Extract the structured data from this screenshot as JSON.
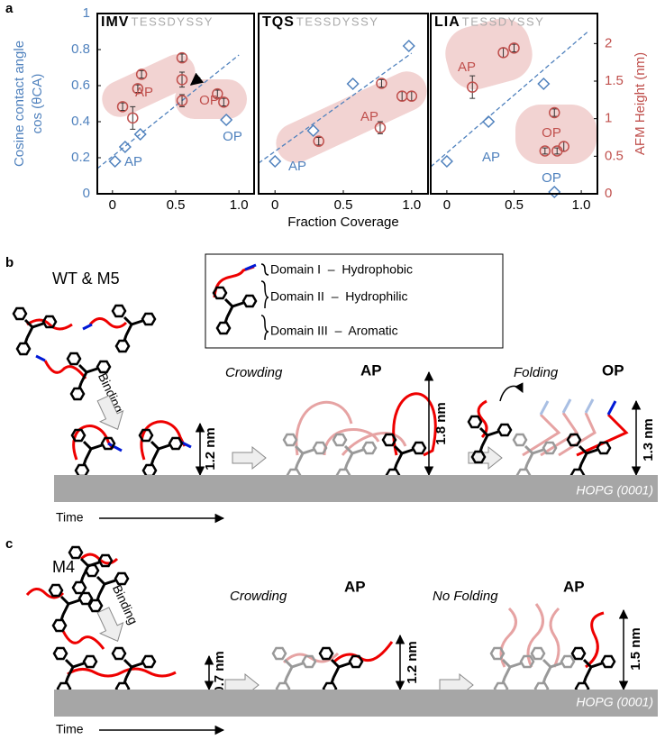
{
  "panel_labels": [
    "a",
    "b",
    "c"
  ],
  "chart_data": [
    {
      "type": "scatter",
      "title": "IMV",
      "subtitle": "TESSDYSSY",
      "y_label": [
        "Cosine contact angle",
        "cos (θCA)"
      ],
      "xlim": [
        -0.12,
        1.12
      ],
      "xticks": [
        0,
        0.5,
        {
          "value": 1,
          "label": "1.0"
        }
      ],
      "ylim": [
        0,
        1
      ],
      "yticks": [
        0,
        0.2,
        0.4,
        0.6,
        0.8,
        1
      ],
      "y2lim": [
        0,
        2.4
      ],
      "series": [
        {
          "color": "#4f81bd",
          "marker": "diamond",
          "x": [
            0.02,
            0.1,
            0.22,
            0.9
          ],
          "values": [
            0.18,
            0.26,
            0.33,
            0.41
          ]
        },
        {
          "color": "#4f81bd",
          "style": "dashed",
          "x": [
            -0.12,
            1.0
          ],
          "values": [
            0.14,
            0.77
          ]
        },
        {
          "color": "#c0504d",
          "marker": "circle",
          "axis": "y2",
          "x": [
            0.08,
            0.16,
            0.2,
            0.23,
            0.55,
            0.55,
            0.55,
            0.83,
            0.88
          ],
          "values": [
            1.16,
            1.01,
            1.4,
            1.59,
            1.81,
            1.52,
            1.24,
            1.33,
            1.22
          ],
          "errors": [
            0.05,
            0.15,
            0.05,
            0.05,
            0.05,
            0.1,
            0.08,
            0.05,
            0.05
          ]
        }
      ],
      "annotations": [
        {
          "text": "AP",
          "color": "#c0504d"
        },
        {
          "text": "OP",
          "color": "#c0504d"
        },
        {
          "text": "AP",
          "color": "#4f81bd"
        },
        {
          "text": "OP",
          "color": "#4f81bd"
        }
      ]
    },
    {
      "type": "scatter",
      "title": "TQS",
      "subtitle": "TESSDYSSY",
      "x_label": "Fraction Coverage",
      "xlim": [
        -0.12,
        1.12
      ],
      "xticks": [
        0,
        0.5,
        {
          "value": 1,
          "label": "1.0"
        }
      ],
      "ylim": [
        0,
        1
      ],
      "y2lim": [
        0,
        2.4
      ],
      "series": [
        {
          "color": "#4f81bd",
          "marker": "diamond",
          "x": [
            0,
            0.28,
            0.57,
            0.98
          ],
          "values": [
            0.18,
            0.35,
            0.61,
            0.82
          ]
        },
        {
          "color": "#4f81bd",
          "style": "dashed",
          "x": [
            -0.12,
            1.0
          ],
          "values": [
            0.17,
            0.78
          ]
        },
        {
          "color": "#c0504d",
          "marker": "circle",
          "axis": "y2",
          "x": [
            0.32,
            0.78,
            0.77,
            0.93,
            1.0
          ],
          "values": [
            0.7,
            1.47,
            0.88,
            1.3,
            1.3
          ],
          "errors": [
            0.05,
            0.05,
            0.08,
            0.06,
            0.06
          ]
        }
      ],
      "annotations": [
        {
          "text": "AP",
          "color": "#c0504d"
        },
        {
          "text": "AP",
          "color": "#4f81bd"
        }
      ]
    },
    {
      "type": "scatter",
      "title": "LIA",
      "subtitle": "TESSDYSSY",
      "y2_label": "AFM Height (nm)",
      "xlim": [
        -0.12,
        1.12
      ],
      "xticks": [
        0,
        0.5,
        {
          "value": 1,
          "label": "1.0"
        }
      ],
      "ylim": [
        0,
        1
      ],
      "y2lim": [
        0,
        2.4
      ],
      "y2ticks": [
        0,
        0.5,
        1,
        1.5,
        2
      ],
      "series": [
        {
          "color": "#4f81bd",
          "marker": "diamond",
          "x": [
            0,
            0.31,
            0.72,
            0.8
          ],
          "values": [
            0.18,
            0.4,
            0.61,
            0.01
          ]
        },
        {
          "color": "#4f81bd",
          "style": "dashed",
          "x": [
            -0.12,
            1.05
          ],
          "values": [
            0.15,
            0.9
          ]
        },
        {
          "color": "#c0504d",
          "marker": "circle",
          "axis": "y2",
          "x": [
            0.19,
            0.42,
            0.5,
            0.8,
            0.73,
            0.82,
            0.87
          ],
          "values": [
            1.42,
            1.88,
            1.94,
            1.08,
            0.57,
            0.57,
            0.63
          ],
          "errors": [
            0.15,
            0.06,
            0.05,
            0.05,
            0.04,
            0.04,
            0.06
          ]
        }
      ],
      "annotations": [
        {
          "text": "AP",
          "color": "#c0504d"
        },
        {
          "text": "OP",
          "color": "#c0504d"
        },
        {
          "text": "AP",
          "color": "#4f81bd"
        },
        {
          "text": "OP",
          "color": "#4f81bd"
        }
      ]
    }
  ],
  "panel_b": {
    "sample": "WT & M5",
    "legend": [
      "Domain I  –  Hydrophobic",
      "Domain II  –  Hydrophilic",
      "Domain III  –  Aromatic"
    ],
    "binding": "Binding",
    "crowding": "Crowding",
    "state1": "AP",
    "folding": "Folding",
    "state2": "OP",
    "heights": [
      "1.2 nm",
      "1.8 nm",
      "1.3 nm"
    ],
    "substrate": "HOPG (0001)",
    "time": "Time"
  },
  "panel_c": {
    "sample": "M4",
    "binding": "Binding",
    "crowding": "Crowding",
    "state1": "AP",
    "folding": "No Folding",
    "state2": "AP",
    "heights": [
      "0.7 nm",
      "1.2 nm",
      "1.5 nm"
    ],
    "substrate": "HOPG (0001)",
    "time": "Time"
  }
}
